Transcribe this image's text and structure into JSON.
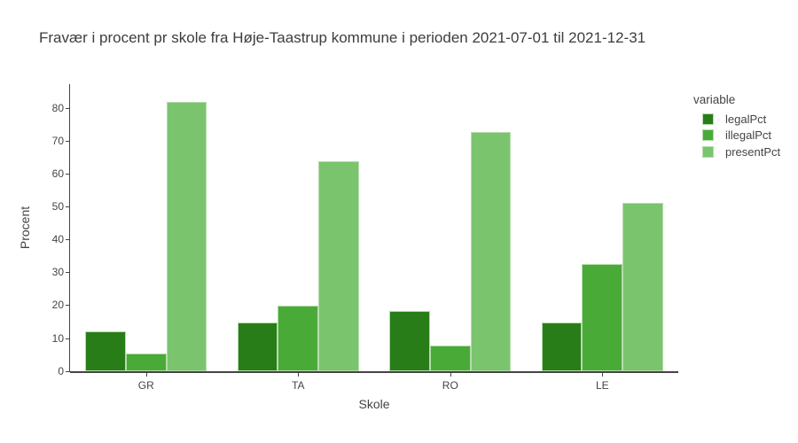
{
  "chart_data": {
    "type": "bar",
    "title": "Fravær i procent pr skole fra Høje-Taastrup kommune i perioden 2021-07-01 til 2021-12-31",
    "xlabel": "Skole",
    "ylabel": "Procent",
    "categories": [
      "GR",
      "TA",
      "RO",
      "LE"
    ],
    "series": [
      {
        "name": "legalPct",
        "color": "#287d18",
        "values": [
          12.2,
          14.8,
          18.5,
          14.8
        ]
      },
      {
        "name": "illegalPct",
        "color": "#4aaa38",
        "values": [
          5.4,
          19.9,
          7.9,
          32.8
        ]
      },
      {
        "name": "presentPct",
        "color": "#7ac46e",
        "values": [
          82.0,
          64.0,
          72.8,
          51.2
        ]
      }
    ],
    "ylim": [
      0,
      87.5
    ],
    "yticks": [
      0,
      10,
      20,
      30,
      40,
      50,
      60,
      70,
      80
    ],
    "legend_title": "variable",
    "legend_position": "right",
    "grid": false,
    "bargap": 0.2,
    "bargroupgap": 0,
    "colors": {
      "background": "#ffffff",
      "axis_line": "#444444",
      "text": "#444444",
      "title_text": "#3d3d3d",
      "bar_border": "#b5dcab"
    }
  }
}
